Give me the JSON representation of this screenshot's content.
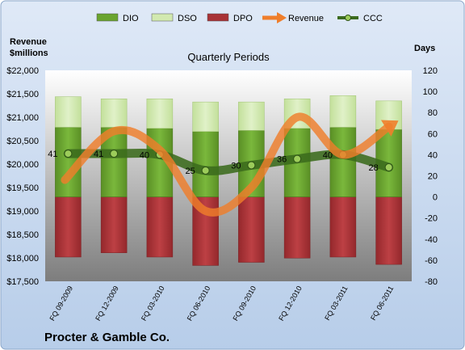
{
  "chart_data": {
    "type": "bar",
    "title": "Quarterly Periods",
    "footer_title": "Procter & Gamble Co.",
    "left_axis_label_line1": "Revenue",
    "left_axis_label_line2": "$millions",
    "right_axis_label": "Days",
    "categories": [
      "FQ 09-2009",
      "FQ 12-2009",
      "FQ 03-2010",
      "FQ 06-2010",
      "FQ 09-2010",
      "FQ 12-2010",
      "FQ 03-2011",
      "FQ 06-2011"
    ],
    "left_axis": {
      "ylim": [
        17500,
        22000
      ],
      "ticks": [
        "$17,500",
        "$18,000",
        "$18,500",
        "$19,000",
        "$19,500",
        "$20,000",
        "$20,500",
        "$21,000",
        "$21,500",
        "$22,000"
      ]
    },
    "right_axis": {
      "ylim": [
        -80,
        120
      ],
      "ticks": [
        "-80",
        "-60",
        "-40",
        "-20",
        "0",
        "20",
        "40",
        "60",
        "80",
        "100",
        "120"
      ]
    },
    "series": [
      {
        "name": "DIO",
        "kind": "stacked-bar",
        "axis": "days",
        "color": "#6aa42f",
        "values": [
          66,
          66,
          65,
          62,
          63,
          65,
          66,
          64
        ]
      },
      {
        "name": "DSO",
        "kind": "stacked-bar",
        "axis": "days",
        "color": "#d2e9b0",
        "values": [
          29,
          27,
          28,
          28,
          27,
          28,
          30,
          27
        ]
      },
      {
        "name": "DPO",
        "kind": "stacked-bar",
        "axis": "days",
        "color": "#a83236",
        "values": [
          -57,
          -53,
          -57,
          -65,
          -62,
          -58,
          -57,
          -64
        ]
      },
      {
        "name": "Revenue",
        "kind": "line",
        "axis": "revenue",
        "color": "#ef7e2b",
        "values": [
          19800,
          20700,
          20300,
          19000,
          19500,
          21000,
          20200,
          20800
        ]
      },
      {
        "name": "CCC",
        "kind": "line",
        "axis": "days",
        "color": "#3b6b1d",
        "values": [
          41,
          41,
          40,
          25,
          30,
          36,
          40,
          28
        ],
        "labels": [
          "41",
          "41",
          "40",
          "25",
          "30",
          "36",
          "40",
          "28"
        ]
      }
    ],
    "legend_position": "top",
    "grid": false
  }
}
